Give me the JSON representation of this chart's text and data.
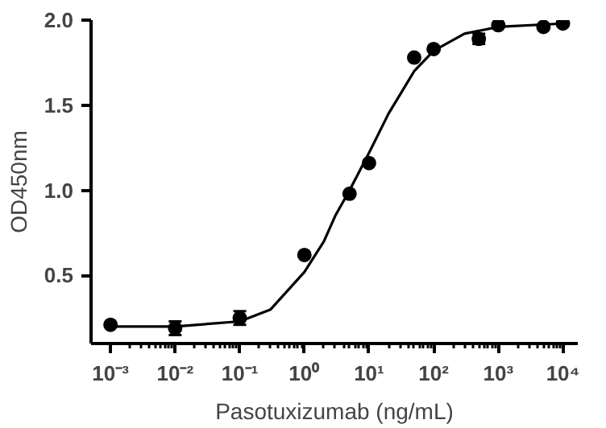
{
  "chart_data": {
    "type": "scatter",
    "xlabel": "Pasotuxizumab (ng/mL)",
    "ylabel": "OD450nm",
    "log": "x",
    "xlim": [
      0.0005,
      17000
    ],
    "ylim": [
      0.1,
      2.0
    ],
    "xticks": [
      {
        "value": 0.001,
        "label": "10⁻³"
      },
      {
        "value": 0.01,
        "label": "10⁻²"
      },
      {
        "value": 0.1,
        "label": "10⁻¹"
      },
      {
        "value": 1,
        "label": "10⁰"
      },
      {
        "value": 10,
        "label": "10¹"
      },
      {
        "value": 100,
        "label": "10²"
      },
      {
        "value": 1000,
        "label": "10³"
      },
      {
        "value": 10000,
        "label": "10⁴"
      }
    ],
    "yticks": [
      0.5,
      {
        "value": 1,
        "label": "1.0"
      },
      1.5,
      {
        "value": 2,
        "label": "2.0"
      }
    ],
    "grid": false,
    "marker": "circle",
    "series": [
      {
        "color": "#000000",
        "x": [
          0.001,
          0.01,
          0.1,
          1,
          5,
          10,
          50,
          100,
          500,
          1000,
          5000,
          10000
        ],
        "values": [
          0.21,
          0.19,
          0.25,
          0.62,
          0.98,
          1.16,
          1.78,
          1.83,
          1.89,
          1.97,
          1.96,
          1.98
        ],
        "errors": [
          null,
          0.04,
          0.04,
          null,
          null,
          null,
          null,
          null,
          0.03,
          null,
          null,
          null
        ]
      },
      {
        "type": "line",
        "color": "#000000",
        "line_style": "solid",
        "marker": "none",
        "x": [
          0.001,
          0.01,
          0.1,
          0.3,
          1,
          2,
          3,
          5,
          10,
          20,
          50,
          100,
          300,
          1000,
          10000
        ],
        "values": [
          0.2,
          0.2,
          0.23,
          0.3,
          0.52,
          0.7,
          0.85,
          1.0,
          1.22,
          1.45,
          1.7,
          1.82,
          1.92,
          1.96,
          1.98
        ]
      }
    ]
  }
}
